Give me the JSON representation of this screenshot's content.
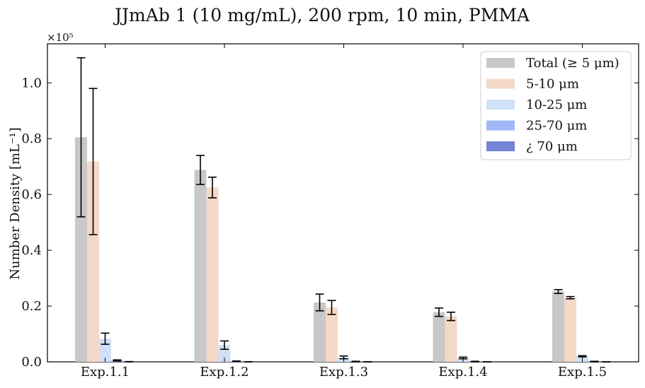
{
  "chart_data": {
    "type": "bar",
    "title": "JJmAb 1 (10 mg/mL), 200 rpm, 10 min, PMMA",
    "ylabel": "Number Density [mL⁻¹]",
    "xlabel": "",
    "y_multiplier_label": "×10⁵",
    "ylim": [
      0,
      1.14
    ],
    "yticks": [
      0.0,
      0.2,
      0.4,
      0.6,
      0.8,
      1.0
    ],
    "ytick_labels": [
      "0.0",
      "0.2",
      "0.4",
      "0.6",
      "0.8",
      "1.0"
    ],
    "categories": [
      "Exp.1.1",
      "Exp.1.2",
      "Exp.1.3",
      "Exp.1.4",
      "Exp.1.5"
    ],
    "legend_position": "top-right",
    "grid": false,
    "series": [
      {
        "name": "Total (≥ 5 μm)",
        "color": "#c8c8c8",
        "values": [
          0.805,
          0.688,
          0.213,
          0.178,
          0.252
        ],
        "errors": [
          0.285,
          0.052,
          0.03,
          0.015,
          0.007
        ]
      },
      {
        "name": "5-10 μm",
        "color": "#f4d8c8",
        "values": [
          0.718,
          0.625,
          0.195,
          0.163,
          0.23
        ],
        "errors": [
          0.262,
          0.037,
          0.025,
          0.015,
          0.004
        ]
      },
      {
        "name": "10-25 μm",
        "color": "#cfe0f7",
        "values": [
          0.083,
          0.06,
          0.016,
          0.014,
          0.02
        ],
        "errors": [
          0.02,
          0.015,
          0.005,
          0.003,
          0.002
        ]
      },
      {
        "name": "25-70 μm",
        "color": "#a0b8f8",
        "values": [
          0.005,
          0.002,
          0.001,
          0.001,
          0.001
        ],
        "errors": [
          0.002,
          0.001,
          0.001,
          0.001,
          0.001
        ]
      },
      {
        "name": "¿ 70 μm",
        "color": "#7483d6",
        "values": [
          0.0005,
          0.0003,
          0.0002,
          0.0002,
          0.0002
        ],
        "errors": [
          0.0005,
          0.0003,
          0.0002,
          0.0002,
          0.0002
        ]
      }
    ]
  }
}
